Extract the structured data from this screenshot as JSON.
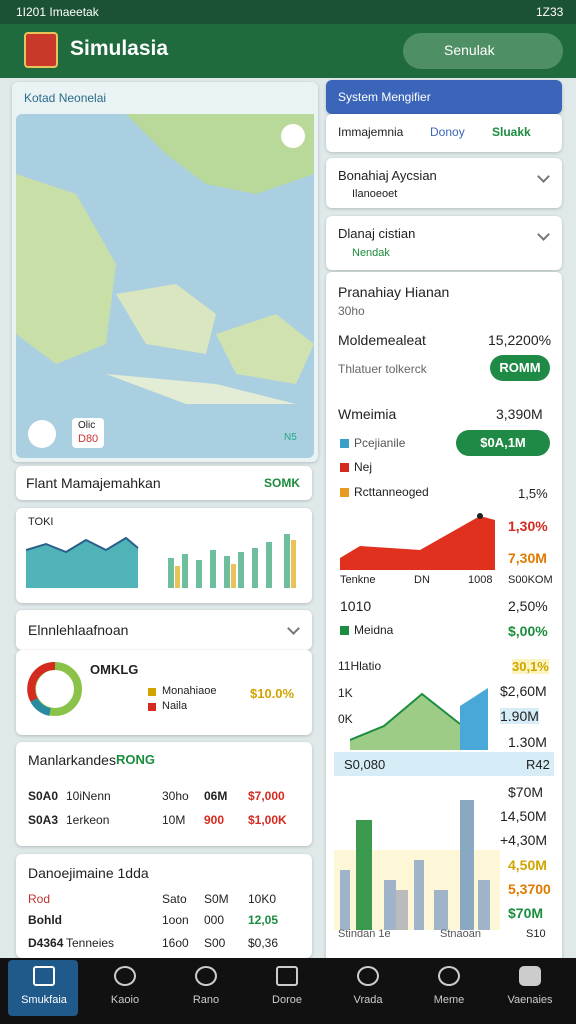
{
  "status": {
    "left": "1I201 Imaeetak",
    "time": "1Z33"
  },
  "header": {
    "title": "Simulasia",
    "search": "Senulak"
  },
  "map": {
    "title": "Kotad Neonelai",
    "labels": [
      "Olic",
      "D80",
      "N5"
    ]
  },
  "left": {
    "plan": {
      "title": "Flant Mamajemahkan",
      "value": "SOMK"
    },
    "chart": {
      "label": "TOKI"
    },
    "section": {
      "title": "Elnnlehlaafnoan"
    },
    "donut": {
      "title": "OMKLG",
      "legend": [
        "Monahiaoe",
        "Naila"
      ],
      "value": "$10.0%"
    },
    "market": {
      "title": "Manlarkandes",
      "tag": "RONG",
      "rows": [
        [
          "S0A0",
          "10iNenn",
          "30ho",
          "06M",
          "$7,000"
        ],
        [
          "S0A3",
          "1erkeon",
          "10M",
          "900",
          "$1,00K"
        ]
      ]
    },
    "table": {
      "title": "Danoejimaine 1dda",
      "rows": [
        [
          "Rod",
          "Sato",
          "S0M",
          "10K0"
        ],
        [
          "Bohld",
          "1oon",
          "000",
          "12,05"
        ],
        [
          "D4364",
          "Tenneies",
          "16o0",
          "S00",
          "$0,36"
        ]
      ]
    }
  },
  "right": {
    "system": {
      "title": "System Mengifier",
      "cols": [
        "Immajemnia",
        "Donoy",
        "Sluakk"
      ]
    },
    "d1": {
      "title": "Bonahiaj Aycsian",
      "sub": "Ilanoeoet"
    },
    "d2": {
      "title": "Dlanaj cistian",
      "sub": "Nendak"
    },
    "plan": {
      "title": "Pranahiay Hianan",
      "sub": "30ho"
    },
    "model": {
      "label": "Moldemealeat",
      "value": "15,2200%",
      "note": "Thlatuer tolkerck",
      "button": "ROMM"
    },
    "wm": {
      "label": "Wmeimia",
      "value": "3,390M",
      "legend": [
        "Pcejianile",
        "Nej",
        "Rcttanneoged"
      ],
      "button": "$0A,1M",
      "pct": "1,5%"
    },
    "area": {
      "labels": [
        "1,30%",
        "7,30M"
      ],
      "axis": [
        "Tenkne",
        "DN",
        "1008",
        "S00KOM"
      ]
    },
    "rowa": [
      "1010",
      "2,50%"
    ],
    "rowb": [
      "Meidna",
      "$,00%"
    ],
    "hist": {
      "title": "11Hlatio",
      "value": "30,1%",
      "left": [
        "1K",
        "0K"
      ],
      "right": [
        "$2,60M",
        "1.90M",
        "1.30M"
      ],
      "foot": [
        "S0,080",
        "R42"
      ]
    },
    "city": {
      "values": [
        "$70M",
        "14,50M",
        "+4,30M",
        "4,50M",
        "5,3700",
        "$70M"
      ],
      "foot": [
        "Stindan 1e",
        "Stnaoan",
        "S10"
      ]
    }
  },
  "nav": [
    "Smukfaia",
    "Kaoio",
    "Rano",
    "Doroe",
    "Vrada",
    "Meme",
    "Vaenaies"
  ]
}
